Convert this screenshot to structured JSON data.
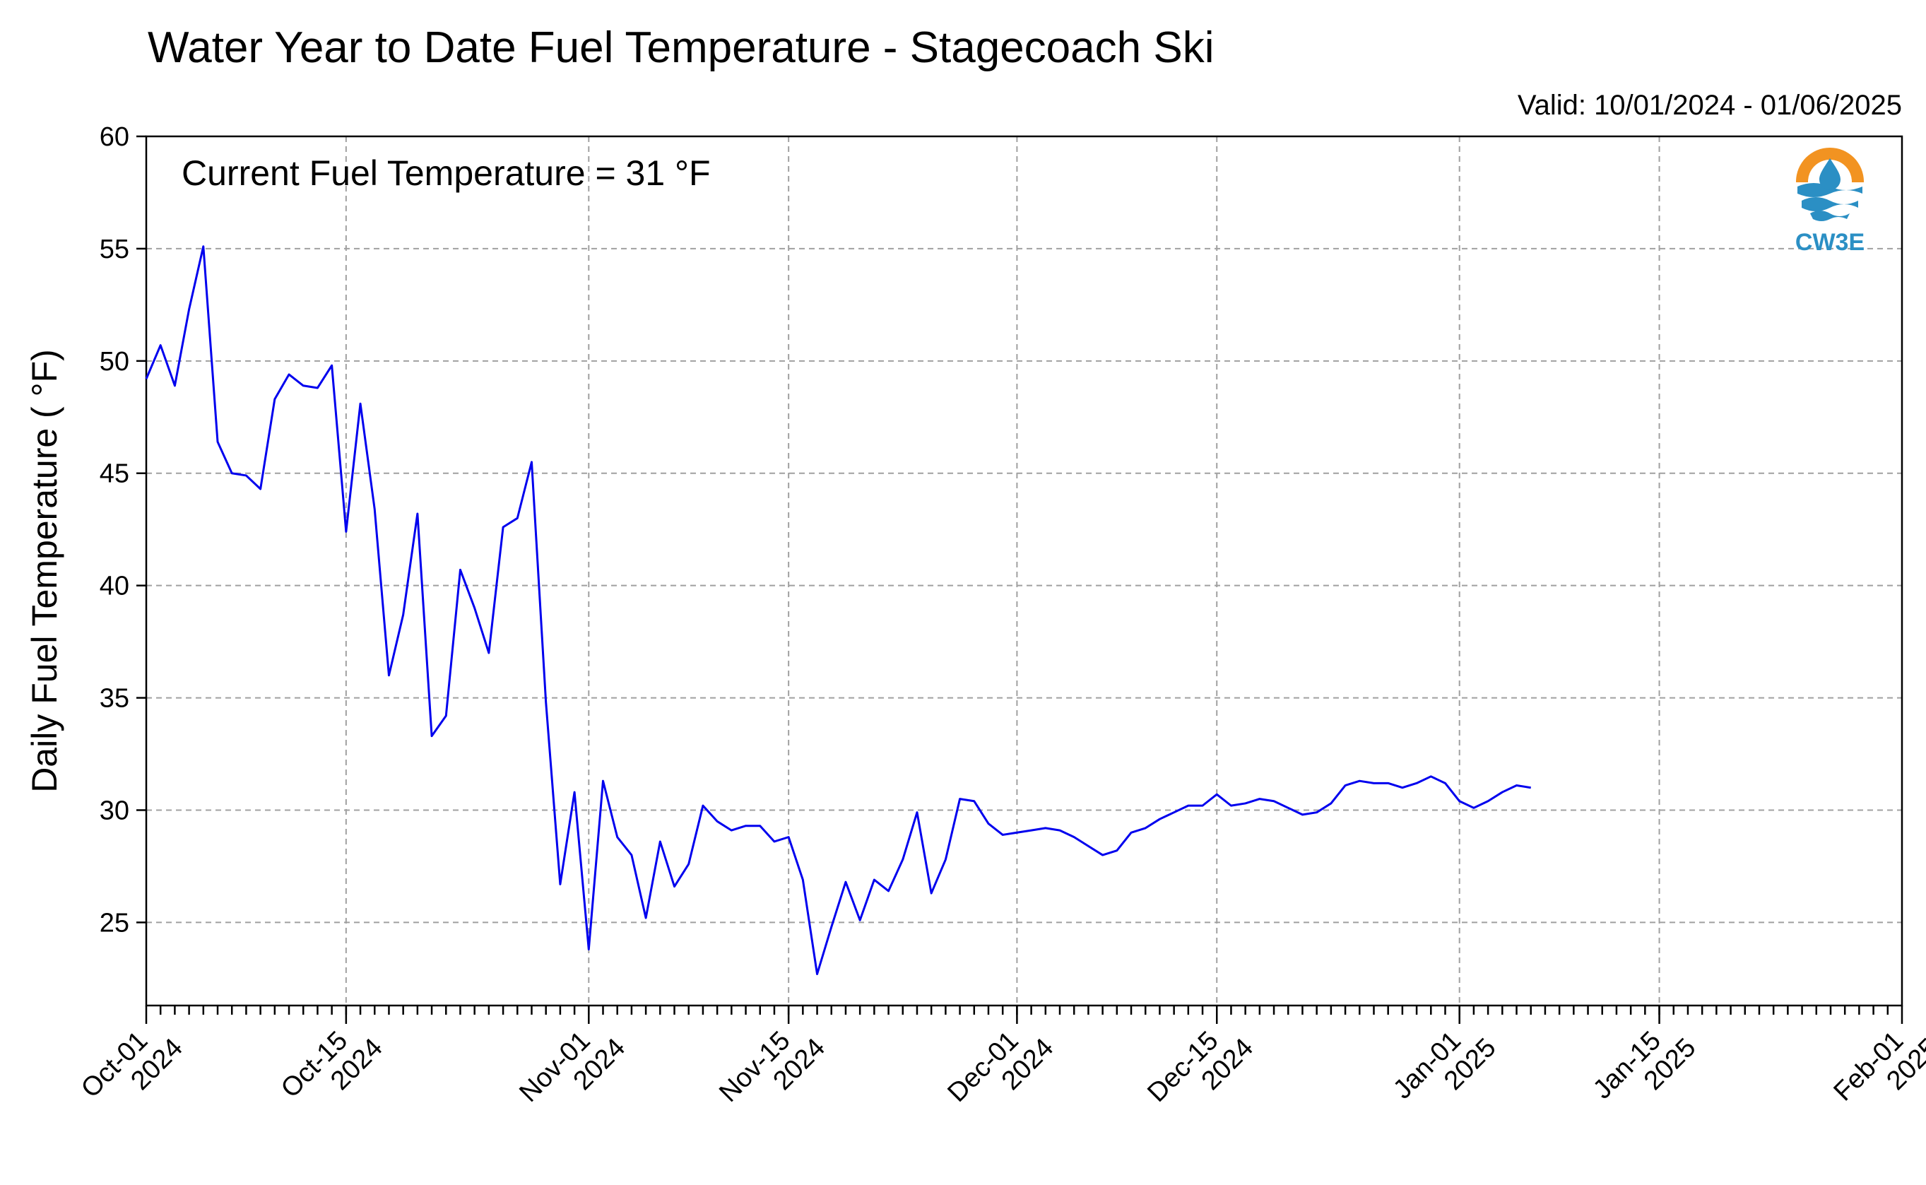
{
  "chart_data": {
    "type": "line",
    "title": "Water Year to Date Fuel Temperature - Stagecoach Ski",
    "valid_range": "Valid: 10/01/2024 - 01/06/2025",
    "annotation": "Current Fuel Temperature = 31  °F",
    "ylabel": "Daily Fuel Temperature ( °F)",
    "xlabel": "",
    "ylim": [
      21.3,
      60
    ],
    "xlim": [
      "2024-10-01",
      "2025-02-01"
    ],
    "yticks": [
      25,
      30,
      35,
      40,
      45,
      50,
      55,
      60
    ],
    "xticks": [
      {
        "date": "2024-10-01",
        "label": [
          "Oct-01",
          "2024"
        ]
      },
      {
        "date": "2024-10-15",
        "label": [
          "Oct-15",
          "2024"
        ]
      },
      {
        "date": "2024-11-01",
        "label": [
          "Nov-01",
          "2024"
        ]
      },
      {
        "date": "2024-11-15",
        "label": [
          "Nov-15",
          "2024"
        ]
      },
      {
        "date": "2024-12-01",
        "label": [
          "Dec-01",
          "2024"
        ]
      },
      {
        "date": "2024-12-15",
        "label": [
          "Dec-15",
          "2024"
        ]
      },
      {
        "date": "2025-01-01",
        "label": [
          "Jan-01",
          "2025"
        ]
      },
      {
        "date": "2025-01-15",
        "label": [
          "Jan-15",
          "2025"
        ]
      },
      {
        "date": "2025-02-01",
        "label": [
          "Feb-01",
          "2025"
        ]
      }
    ],
    "grid": true,
    "series": [
      {
        "color": "#0000ee",
        "x": [
          "2024-10-01",
          "2024-10-02",
          "2024-10-03",
          "2024-10-04",
          "2024-10-05",
          "2024-10-06",
          "2024-10-07",
          "2024-10-08",
          "2024-10-09",
          "2024-10-10",
          "2024-10-11",
          "2024-10-12",
          "2024-10-13",
          "2024-10-14",
          "2024-10-15",
          "2024-10-16",
          "2024-10-17",
          "2024-10-18",
          "2024-10-19",
          "2024-10-20",
          "2024-10-21",
          "2024-10-22",
          "2024-10-23",
          "2024-10-24",
          "2024-10-25",
          "2024-10-26",
          "2024-10-27",
          "2024-10-28",
          "2024-10-29",
          "2024-10-30",
          "2024-10-31",
          "2024-11-01",
          "2024-11-02",
          "2024-11-03",
          "2024-11-04",
          "2024-11-05",
          "2024-11-06",
          "2024-11-07",
          "2024-11-08",
          "2024-11-09",
          "2024-11-10",
          "2024-11-11",
          "2024-11-12",
          "2024-11-13",
          "2024-11-14",
          "2024-11-15",
          "2024-11-16",
          "2024-11-17",
          "2024-11-18",
          "2024-11-19",
          "2024-11-20",
          "2024-11-21",
          "2024-11-22",
          "2024-11-23",
          "2024-11-24",
          "2024-11-25",
          "2024-11-26",
          "2024-11-27",
          "2024-11-28",
          "2024-11-29",
          "2024-11-30",
          "2024-12-01",
          "2024-12-02",
          "2024-12-03",
          "2024-12-04",
          "2024-12-05",
          "2024-12-06",
          "2024-12-07",
          "2024-12-08",
          "2024-12-09",
          "2024-12-10",
          "2024-12-11",
          "2024-12-12",
          "2024-12-13",
          "2024-12-14",
          "2024-12-15",
          "2024-12-16",
          "2024-12-17",
          "2024-12-18",
          "2024-12-19",
          "2024-12-20",
          "2024-12-21",
          "2024-12-22",
          "2024-12-23",
          "2024-12-24",
          "2024-12-25",
          "2024-12-26",
          "2024-12-27",
          "2024-12-28",
          "2024-12-29",
          "2024-12-30",
          "2024-12-31",
          "2025-01-01",
          "2025-01-02",
          "2025-01-03",
          "2025-01-04",
          "2025-01-05",
          "2025-01-06"
        ],
        "values": [
          49.2,
          50.7,
          48.9,
          52.3,
          55.1,
          46.4,
          45.0,
          44.9,
          44.3,
          48.3,
          49.4,
          48.9,
          48.8,
          49.8,
          42.4,
          48.1,
          43.4,
          36.0,
          38.7,
          43.2,
          33.3,
          34.2,
          40.7,
          39.0,
          37.0,
          42.6,
          43.0,
          45.5,
          34.8,
          26.7,
          30.8,
          23.8,
          31.3,
          28.8,
          28.0,
          25.2,
          28.6,
          26.6,
          27.6,
          30.2,
          29.5,
          29.1,
          29.3,
          29.3,
          28.6,
          28.8,
          26.9,
          22.7,
          24.8,
          26.8,
          25.1,
          26.9,
          26.4,
          27.8,
          29.9,
          26.3,
          27.8,
          30.5,
          30.4,
          29.4,
          28.9,
          29.0,
          29.1,
          29.2,
          29.1,
          28.8,
          28.4,
          28.0,
          28.2,
          29.0,
          29.2,
          29.6,
          29.9,
          30.2,
          30.2,
          30.7,
          30.2,
          30.3,
          30.5,
          30.4,
          30.1,
          29.8,
          29.9,
          30.3,
          31.1,
          31.3,
          31.2,
          31.2,
          31.0,
          31.2,
          31.5,
          31.2,
          30.4,
          30.1,
          30.4,
          30.8,
          31.1,
          31.0
        ]
      }
    ]
  },
  "logo": {
    "text": "CW3E",
    "colors": {
      "sun": "#f29321",
      "water": "#2b8fc4",
      "drop": "#1d6fa8"
    }
  }
}
